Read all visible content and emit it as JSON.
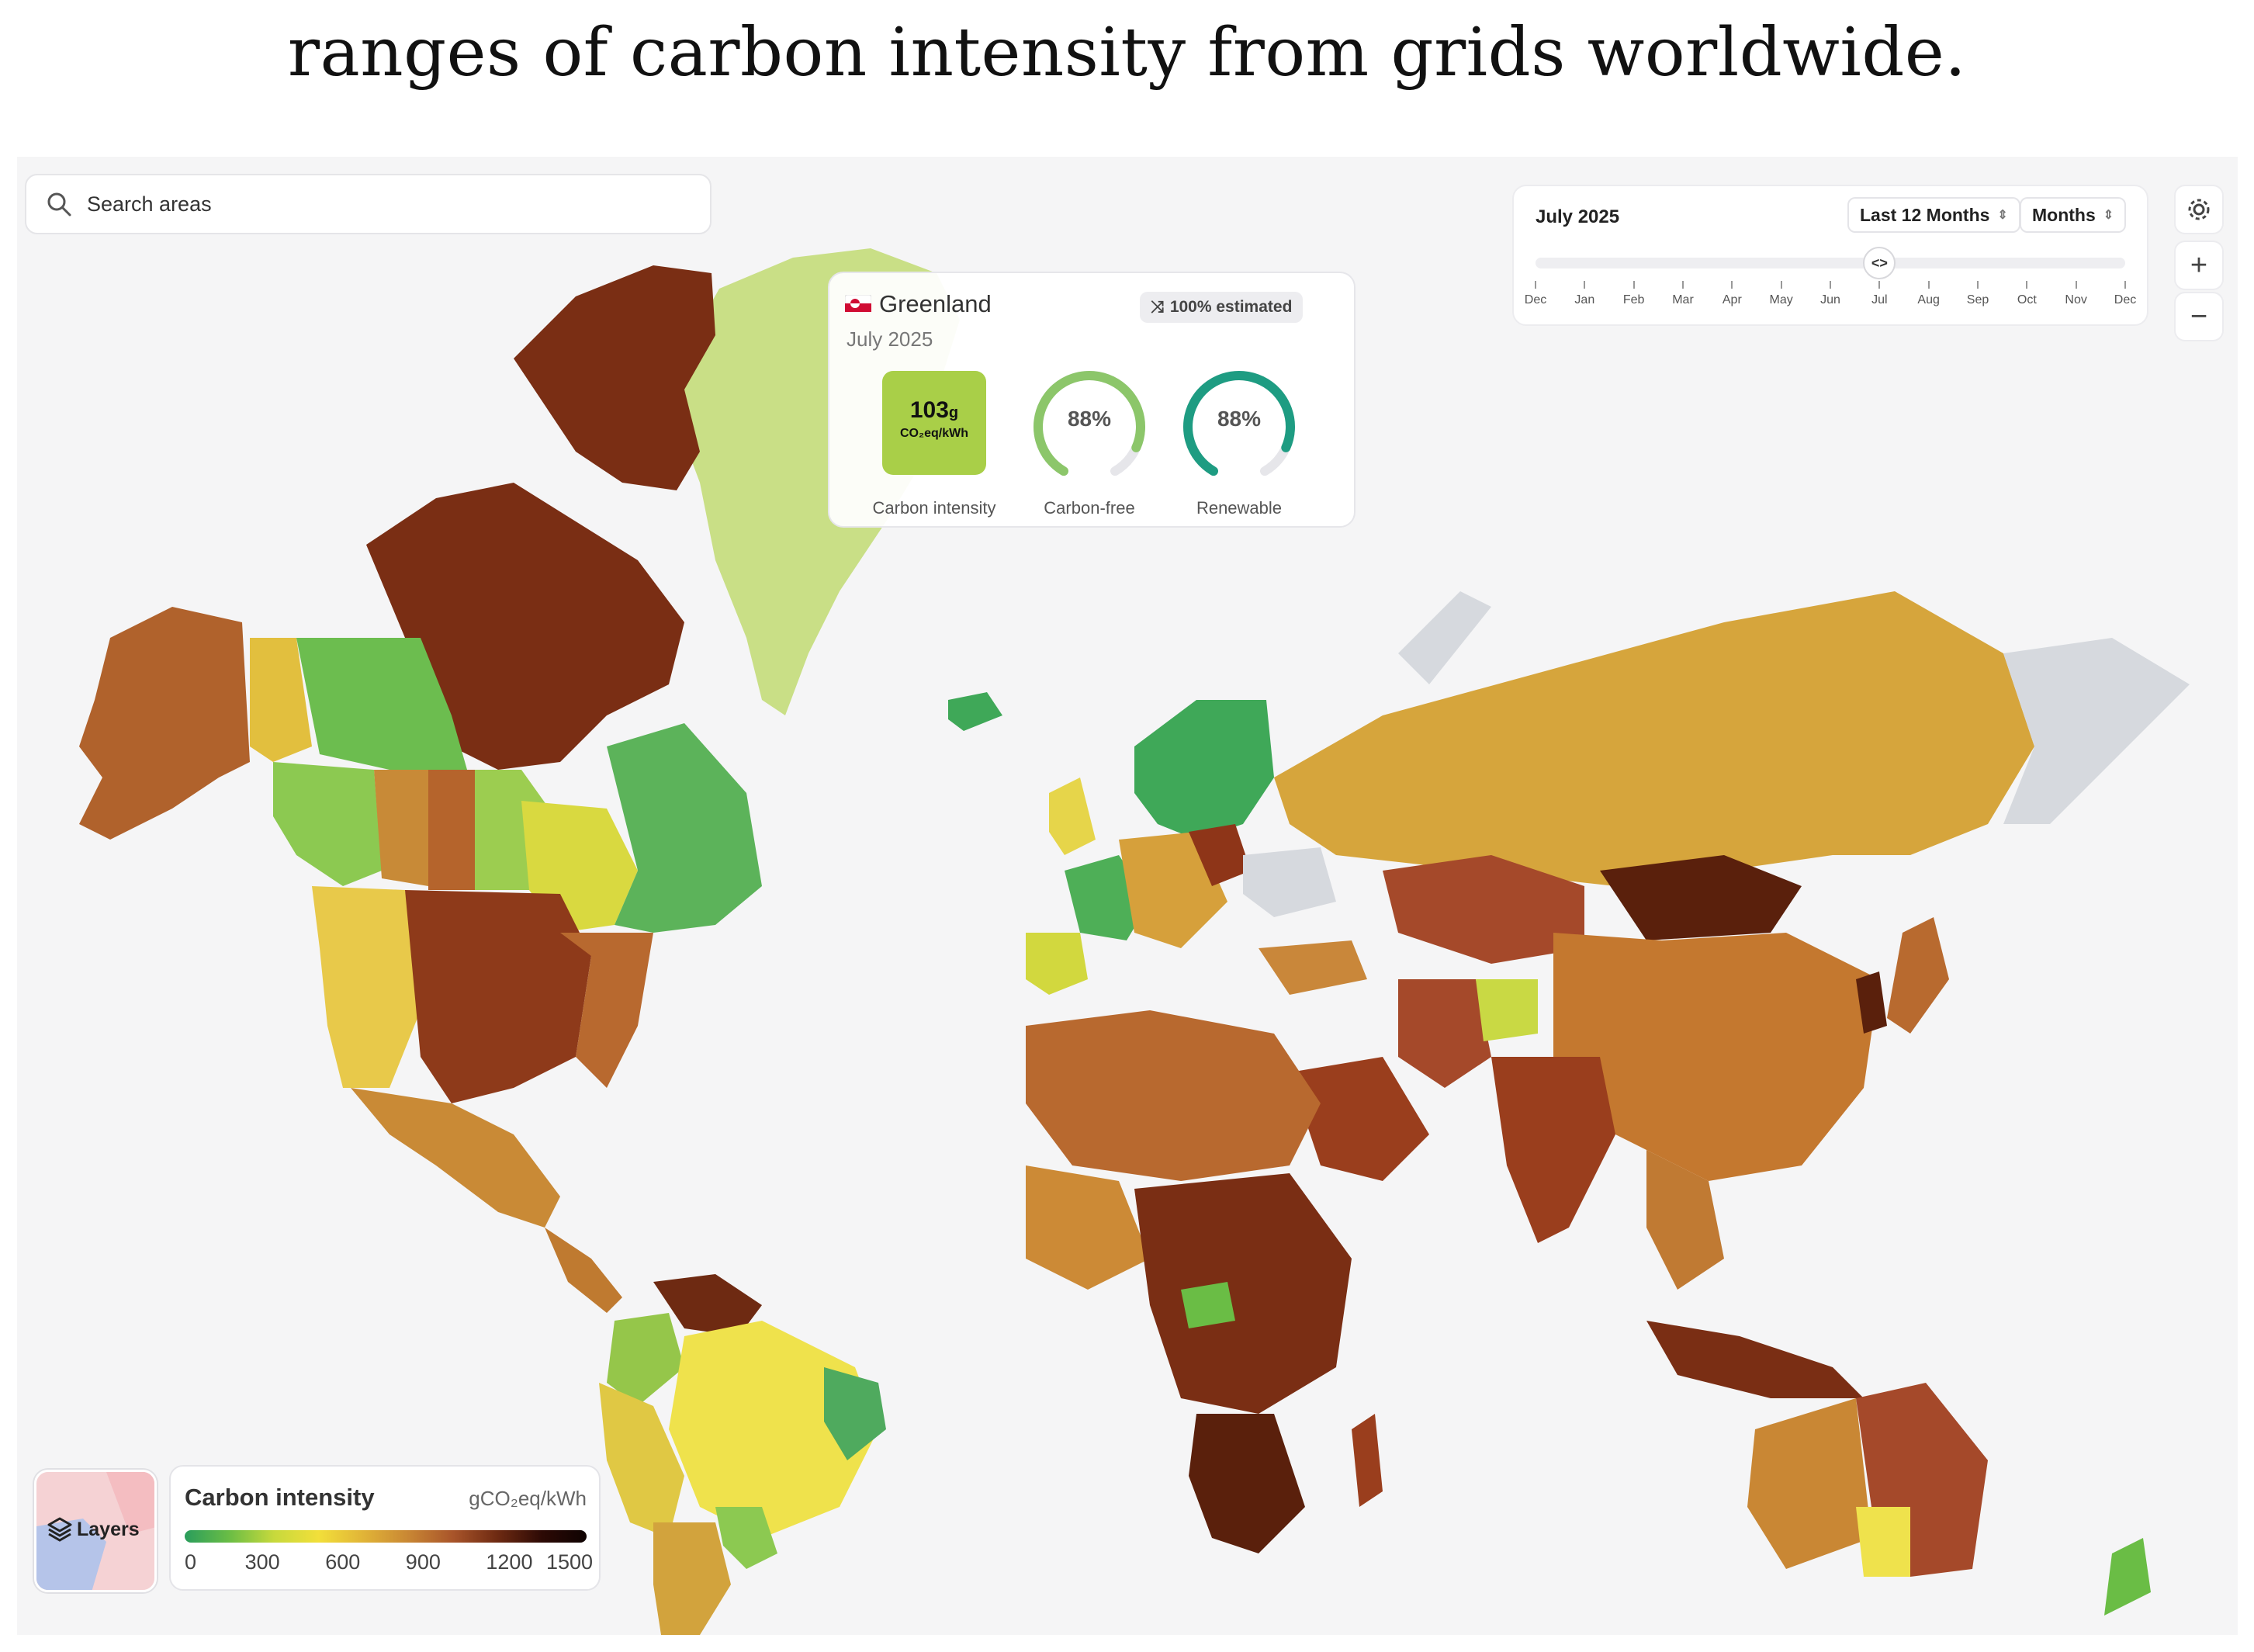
{
  "caption": "ranges of carbon intensity from grids worldwide.",
  "search": {
    "placeholder": "Search areas",
    "icon": "search-icon"
  },
  "time_panel": {
    "selected_date": "July 2025",
    "range_select": "Last 12 Months",
    "granularity_select": "Months",
    "handle_glyph": "<>",
    "months": [
      "Dec",
      "Jan",
      "Feb",
      "Mar",
      "Apr",
      "May",
      "Jun",
      "Jul",
      "Aug",
      "Sep",
      "Oct",
      "Nov",
      "Dec"
    ],
    "selected_month_index": 7
  },
  "controls": {
    "settings_icon": "gear-icon",
    "zoom_in": "+",
    "zoom_out": "−"
  },
  "zone_card": {
    "country": "Greenland",
    "date": "July 2025",
    "estimated_badge": "100% estimated",
    "carbon_intensity_value": "103",
    "carbon_intensity_suffix": "g",
    "carbon_intensity_unit": "CO₂eq/kWh",
    "carbon_intensity_label": "Carbon intensity",
    "carbon_free_value": "88%",
    "carbon_free_label": "Carbon-free",
    "carbon_free_fraction": 0.88,
    "renewable_value": "88%",
    "renewable_label": "Renewable",
    "renewable_fraction": 0.88,
    "ci_color": "#a9cf48",
    "carbon_free_color": "#8cc66a",
    "renewable_color": "#1e9c82"
  },
  "layers": {
    "label": "Layers",
    "icon": "layers-icon"
  },
  "legend": {
    "title": "Carbon intensity",
    "unit": "gCO₂eq/kWh",
    "ticks": [
      "0",
      "300",
      "600",
      "900",
      "1200",
      "1500"
    ],
    "tick_values": [
      0,
      300,
      600,
      900,
      1200,
      1500
    ],
    "max": 1500,
    "gradient_colors": [
      "#2a9d5c",
      "#6abd45",
      "#c7d93c",
      "#f2df3a",
      "#e1b437",
      "#c98734",
      "#a9552a",
      "#6e2a12",
      "#2d0a05",
      "#0e0202"
    ]
  },
  "colors": {
    "ocean": "#f5f5f6",
    "no_data": "#d6d9de"
  }
}
